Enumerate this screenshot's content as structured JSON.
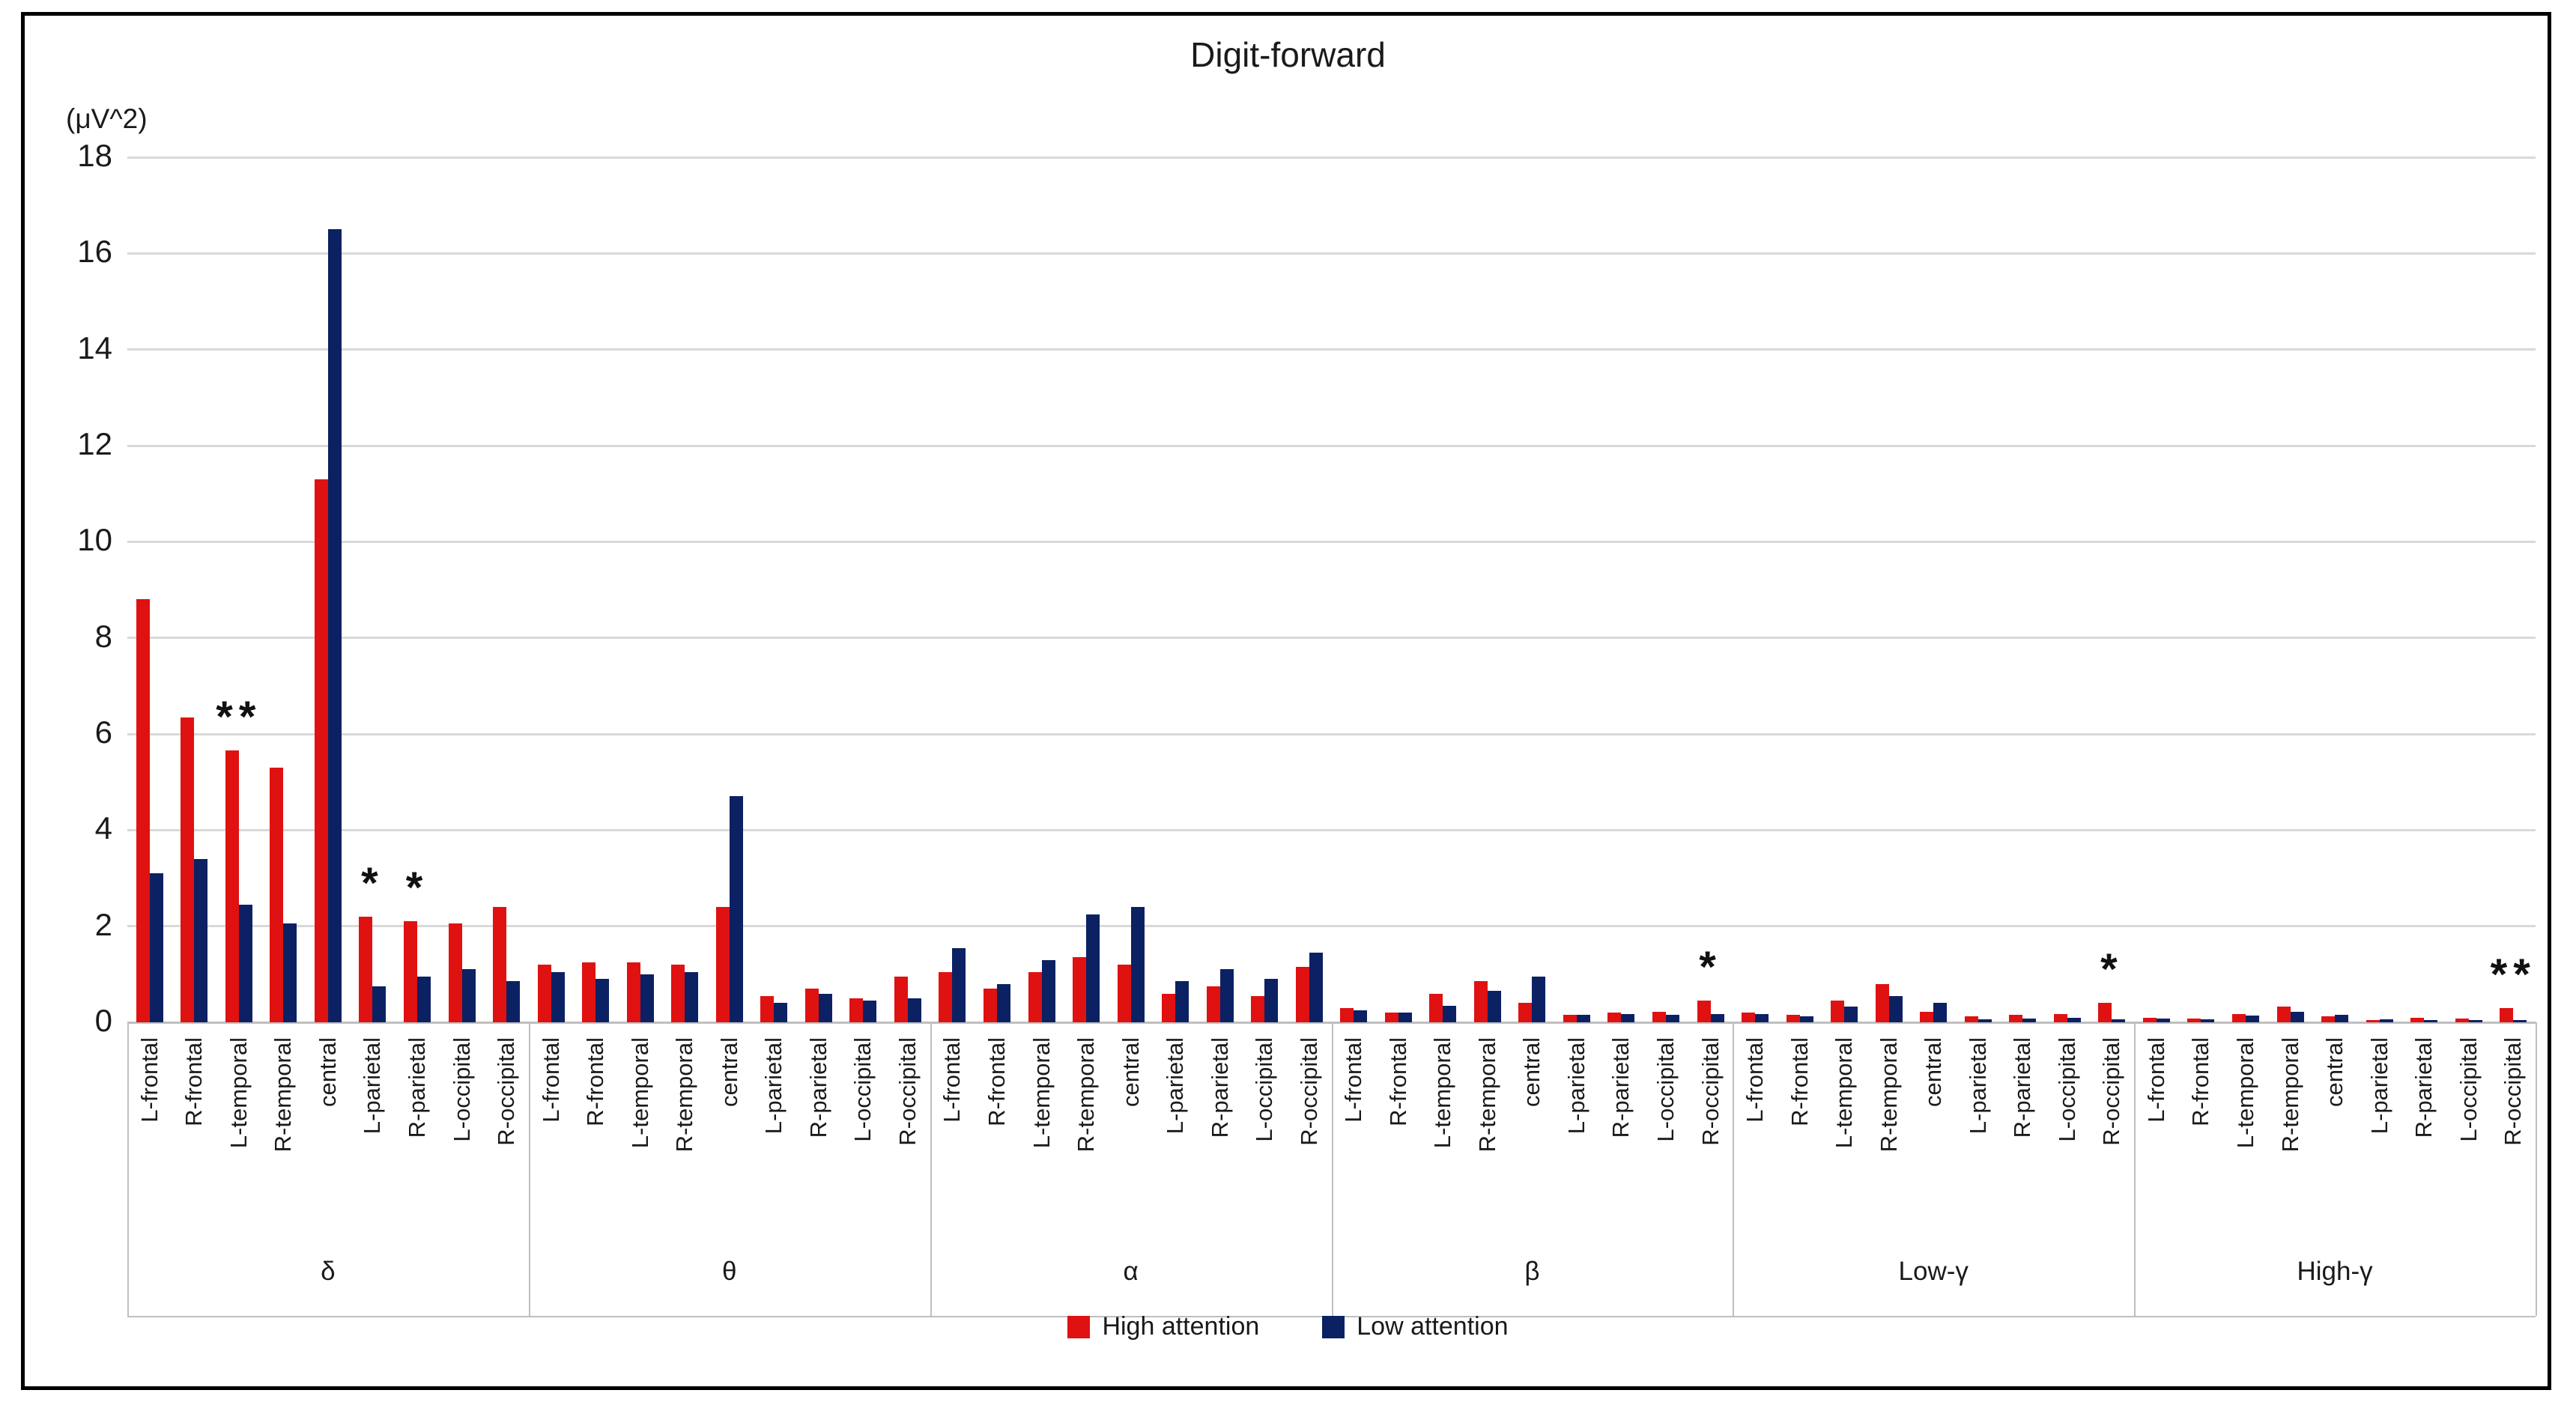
{
  "figure": {
    "title": "Digit-forward",
    "y_unit_label": "(μV^2)",
    "border_color": "#000000",
    "gridline_color": "#d9d9d9",
    "axis_color": "#bfbfbf"
  },
  "legend": {
    "items": [
      {
        "label": "High attention",
        "color": "#e01111"
      },
      {
        "label": "Low attention",
        "color": "#0b2163"
      }
    ]
  },
  "chart_data": {
    "type": "bar",
    "title": "Digit-forward",
    "ylabel": "(μV^2)",
    "xlabel": "",
    "ylim": [
      0,
      18
    ],
    "yticks": [
      0,
      2,
      4,
      6,
      8,
      10,
      12,
      14,
      16,
      18
    ],
    "grid": true,
    "legend_position": "bottom",
    "series": [
      {
        "name": "High attention",
        "color": "#e01111"
      },
      {
        "name": "Low attention",
        "color": "#0b2163"
      }
    ],
    "categories_level1": [
      "L-frontal",
      "R-frontal",
      "L-temporal",
      "R-temporal",
      "central",
      "L-parietal",
      "R-parietal",
      "L-occipital",
      "R-occipital"
    ],
    "categories_level2": [
      "δ",
      "θ",
      "α",
      "β",
      "Low-γ",
      "High-γ"
    ],
    "significance_note": "sig = asterisks printed above the High-attention bar",
    "bands": [
      {
        "label": "δ",
        "groups": [
          {
            "region": "L-frontal",
            "high": 8.8,
            "low": 3.1,
            "sig": ""
          },
          {
            "region": "R-frontal",
            "high": 6.35,
            "low": 3.4,
            "sig": ""
          },
          {
            "region": "L-temporal",
            "high": 5.65,
            "low": 2.45,
            "sig": "**"
          },
          {
            "region": "R-temporal",
            "high": 5.3,
            "low": 2.05,
            "sig": ""
          },
          {
            "region": "central",
            "high": 11.3,
            "low": 16.5,
            "sig": ""
          },
          {
            "region": "L-parietal",
            "high": 2.2,
            "low": 0.75,
            "sig": "*"
          },
          {
            "region": "R-parietal",
            "high": 2.1,
            "low": 0.95,
            "sig": "*"
          },
          {
            "region": "L-occipital",
            "high": 2.05,
            "low": 1.1,
            "sig": ""
          },
          {
            "region": "R-occipital",
            "high": 2.4,
            "low": 0.85,
            "sig": ""
          }
        ]
      },
      {
        "label": "θ",
        "groups": [
          {
            "region": "L-frontal",
            "high": 1.2,
            "low": 1.05,
            "sig": ""
          },
          {
            "region": "R-frontal",
            "high": 1.25,
            "low": 0.9,
            "sig": ""
          },
          {
            "region": "L-temporal",
            "high": 1.25,
            "low": 1.0,
            "sig": ""
          },
          {
            "region": "R-temporal",
            "high": 1.2,
            "low": 1.05,
            "sig": ""
          },
          {
            "region": "central",
            "high": 2.4,
            "low": 4.7,
            "sig": ""
          },
          {
            "region": "L-parietal",
            "high": 0.55,
            "low": 0.4,
            "sig": ""
          },
          {
            "region": "R-parietal",
            "high": 0.7,
            "low": 0.6,
            "sig": ""
          },
          {
            "region": "L-occipital",
            "high": 0.5,
            "low": 0.45,
            "sig": ""
          },
          {
            "region": "R-occipital",
            "high": 0.95,
            "low": 0.5,
            "sig": ""
          }
        ]
      },
      {
        "label": "α",
        "groups": [
          {
            "region": "L-frontal",
            "high": 1.05,
            "low": 1.55,
            "sig": ""
          },
          {
            "region": "R-frontal",
            "high": 0.7,
            "low": 0.8,
            "sig": ""
          },
          {
            "region": "L-temporal",
            "high": 1.05,
            "low": 1.3,
            "sig": ""
          },
          {
            "region": "R-temporal",
            "high": 1.35,
            "low": 2.25,
            "sig": ""
          },
          {
            "region": "central",
            "high": 1.2,
            "low": 2.4,
            "sig": ""
          },
          {
            "region": "L-parietal",
            "high": 0.6,
            "low": 0.85,
            "sig": ""
          },
          {
            "region": "R-parietal",
            "high": 0.75,
            "low": 1.1,
            "sig": ""
          },
          {
            "region": "L-occipital",
            "high": 0.55,
            "low": 0.9,
            "sig": ""
          },
          {
            "region": "R-occipital",
            "high": 1.15,
            "low": 1.45,
            "sig": ""
          }
        ]
      },
      {
        "label": "β",
        "groups": [
          {
            "region": "L-frontal",
            "high": 0.3,
            "low": 0.25,
            "sig": ""
          },
          {
            "region": "R-frontal",
            "high": 0.2,
            "low": 0.2,
            "sig": ""
          },
          {
            "region": "L-temporal",
            "high": 0.6,
            "low": 0.35,
            "sig": ""
          },
          {
            "region": "R-temporal",
            "high": 0.85,
            "low": 0.65,
            "sig": ""
          },
          {
            "region": "central",
            "high": 0.4,
            "low": 0.95,
            "sig": ""
          },
          {
            "region": "L-parietal",
            "high": 0.15,
            "low": 0.15,
            "sig": ""
          },
          {
            "region": "R-parietal",
            "high": 0.2,
            "low": 0.17,
            "sig": ""
          },
          {
            "region": "L-occipital",
            "high": 0.22,
            "low": 0.15,
            "sig": ""
          },
          {
            "region": "R-occipital",
            "high": 0.45,
            "low": 0.17,
            "sig": "*"
          }
        ]
      },
      {
        "label": "Low-γ",
        "groups": [
          {
            "region": "L-frontal",
            "high": 0.2,
            "low": 0.17,
            "sig": ""
          },
          {
            "region": "R-frontal",
            "high": 0.15,
            "low": 0.13,
            "sig": ""
          },
          {
            "region": "L-temporal",
            "high": 0.45,
            "low": 0.32,
            "sig": ""
          },
          {
            "region": "R-temporal",
            "high": 0.8,
            "low": 0.55,
            "sig": ""
          },
          {
            "region": "central",
            "high": 0.22,
            "low": 0.4,
            "sig": ""
          },
          {
            "region": "L-parietal",
            "high": 0.12,
            "low": 0.07,
            "sig": ""
          },
          {
            "region": "R-parietal",
            "high": 0.15,
            "low": 0.08,
            "sig": ""
          },
          {
            "region": "L-occipital",
            "high": 0.17,
            "low": 0.1,
            "sig": ""
          },
          {
            "region": "R-occipital",
            "high": 0.4,
            "low": 0.06,
            "sig": "*"
          }
        ]
      },
      {
        "label": "High-γ",
        "groups": [
          {
            "region": "L-frontal",
            "high": 0.1,
            "low": 0.08,
            "sig": ""
          },
          {
            "region": "R-frontal",
            "high": 0.08,
            "low": 0.07,
            "sig": ""
          },
          {
            "region": "L-temporal",
            "high": 0.17,
            "low": 0.14,
            "sig": ""
          },
          {
            "region": "R-temporal",
            "high": 0.32,
            "low": 0.22,
            "sig": ""
          },
          {
            "region": "central",
            "high": 0.12,
            "low": 0.15,
            "sig": ""
          },
          {
            "region": "L-parietal",
            "high": 0.05,
            "low": 0.06,
            "sig": ""
          },
          {
            "region": "R-parietal",
            "high": 0.09,
            "low": 0.05,
            "sig": ""
          },
          {
            "region": "L-occipital",
            "high": 0.08,
            "low": 0.05,
            "sig": ""
          },
          {
            "region": "R-occipital",
            "high": 0.3,
            "low": 0.05,
            "sig": "**"
          }
        ]
      }
    ]
  }
}
